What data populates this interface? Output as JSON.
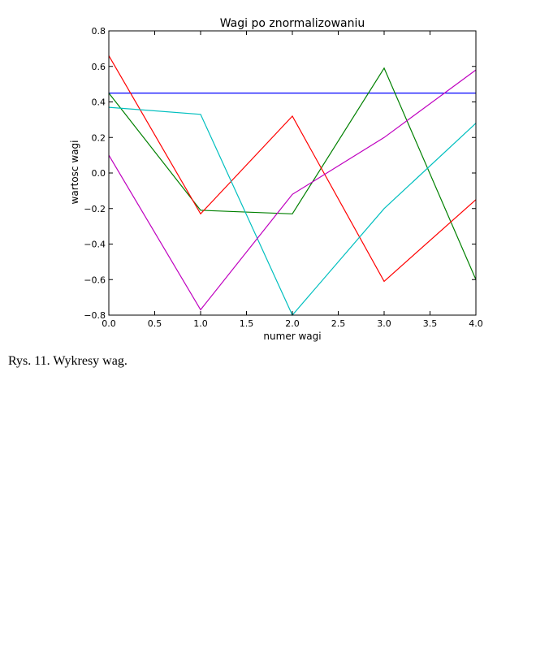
{
  "figure_caption": "Rys. 11. Wykresy wag.",
  "chart_data": {
    "type": "line",
    "title": "Wagi po znormalizowaniu",
    "xlabel": "numer wagi",
    "ylabel": "wartosc wagi",
    "xlim": [
      0.0,
      4.0
    ],
    "ylim": [
      -0.8,
      0.8
    ],
    "xticks": [
      "0.0",
      "0.5",
      "1.0",
      "1.5",
      "2.0",
      "2.5",
      "3.0",
      "3.5",
      "4.0"
    ],
    "yticks": [
      "0.8",
      "0.6",
      "0.4",
      "0.2",
      "0.0",
      "−0.2",
      "−0.4",
      "−0.6",
      "−0.8"
    ],
    "grid": false,
    "legend": false,
    "x": [
      0,
      1,
      2,
      3,
      4
    ],
    "series": [
      {
        "color": "#0000ff",
        "values": [
          0.45,
          0.45,
          0.45,
          0.45,
          0.45
        ]
      },
      {
        "color": "#008000",
        "values": [
          0.45,
          -0.21,
          -0.23,
          0.59,
          -0.6
        ]
      },
      {
        "color": "#ff0000",
        "values": [
          0.66,
          -0.23,
          0.32,
          -0.61,
          -0.15
        ]
      },
      {
        "color": "#00bfbf",
        "values": [
          0.37,
          0.33,
          -0.8,
          -0.2,
          0.28
        ]
      },
      {
        "color": "#bf00bf",
        "values": [
          0.1,
          -0.77,
          -0.12,
          0.2,
          0.58
        ]
      }
    ]
  }
}
